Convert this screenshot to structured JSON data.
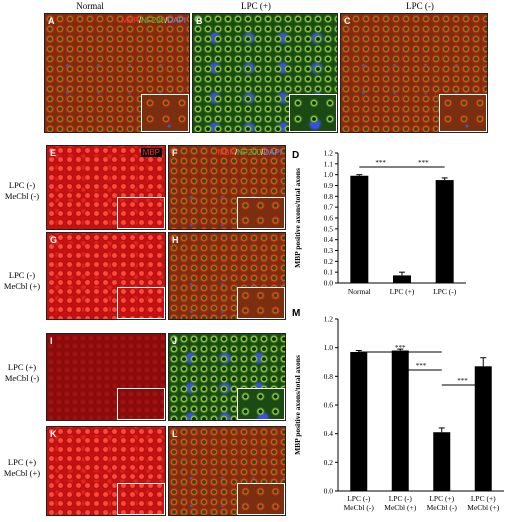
{
  "column_titles": [
    "Normal",
    "LPC (+)",
    "LPC (-)"
  ],
  "top_panels": [
    {
      "letter": "A",
      "stain": {
        "mbp": "MBP",
        "sep1": "/",
        "nf200": "NF200",
        "sep2": "/",
        "dapi": "DAPI"
      }
    },
    {
      "letter": "B"
    },
    {
      "letter": "C"
    }
  ],
  "grid_panels": [
    {
      "letter": "E",
      "stain": "MBP"
    },
    {
      "letter": "F",
      "stain": {
        "mbp": "MBP",
        "sep1": "/",
        "nf200": "NF200",
        "sep2": "/",
        "dapi": "DAPI"
      }
    },
    {
      "letter": "G"
    },
    {
      "letter": "H"
    },
    {
      "letter": "I"
    },
    {
      "letter": "J"
    },
    {
      "letter": "K"
    },
    {
      "letter": "L"
    }
  ],
  "row_labels": [
    {
      "l1": "LPC (-)",
      "l2": "MeCbl (-)"
    },
    {
      "l1": "LPC (-)",
      "l2": "MeCbl (+)"
    },
    {
      "l1": "LPC (+)",
      "l2": "MeCbl (-)"
    },
    {
      "l1": "LPC (+)",
      "l2": "MeCbl (+)"
    }
  ],
  "colors": {
    "mbp": "#e01010",
    "nf200": "#22aa22",
    "dapi": "#2244dd",
    "bar": "#000000"
  },
  "chart_data": [
    {
      "panel": "D",
      "type": "bar",
      "categories": [
        "Normal",
        "LPC (+)",
        "LPC (-)"
      ],
      "values": [
        0.99,
        0.07,
        0.95
      ],
      "errors": [
        0.01,
        0.03,
        0.02
      ],
      "ylabel": "MBP positive axons/total axons",
      "ylim": [
        0.0,
        1.2
      ],
      "yticks": [
        "0.0",
        "0.1",
        "0.2",
        "0.3",
        "0.4",
        "0.5",
        "0.6",
        "0.7",
        "0.8",
        "0.9",
        "1.0",
        "1.1",
        "1.2"
      ],
      "significance": [
        {
          "from": 0,
          "to": 1,
          "label": "***"
        },
        {
          "from": 1,
          "to": 2,
          "label": "***"
        }
      ]
    },
    {
      "panel": "M",
      "type": "bar",
      "categories": [
        {
          "l1": "LPC (-)",
          "l2": "MeCbl (-)"
        },
        {
          "l1": "LPC (-)",
          "l2": "MeCbl (+)"
        },
        {
          "l1": "LPC (+)",
          "l2": "MeCbl (-)"
        },
        {
          "l1": "LPC (+)",
          "l2": "MeCbl (+)"
        }
      ],
      "values": [
        0.97,
        0.98,
        0.41,
        0.87
      ],
      "errors": [
        0.01,
        0.01,
        0.03,
        0.06
      ],
      "ylabel": "MBP positive axons/total axons",
      "ylim": [
        0.0,
        1.2
      ],
      "yticks": [
        "0.0",
        "0.2",
        "0.4",
        "0.6",
        "0.8",
        "1.0",
        "1.2"
      ],
      "significance": [
        {
          "from": 0,
          "to": 2,
          "label": "***"
        },
        {
          "from": 1,
          "to": 2,
          "label": "***"
        },
        {
          "from": 2,
          "to": 3,
          "label": "***"
        }
      ]
    }
  ]
}
